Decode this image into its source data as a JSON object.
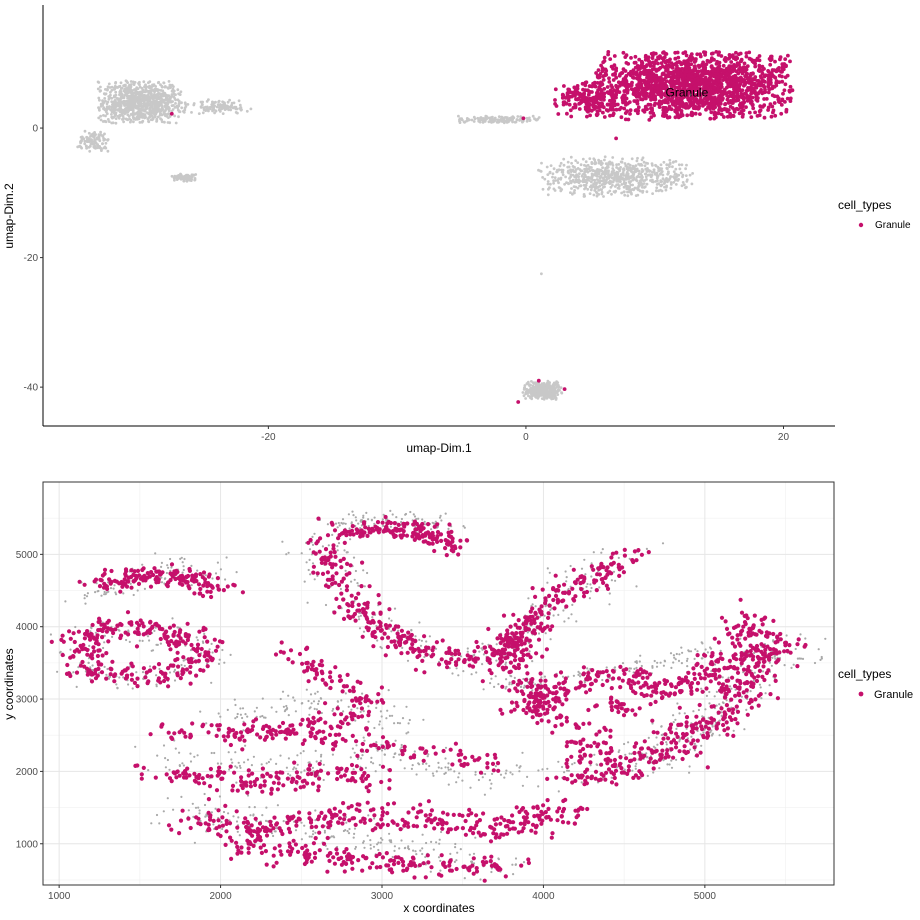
{
  "chart_data": [
    {
      "type": "scatter",
      "xlabel": "umap-Dim.1",
      "ylabel": "umap-Dim.2",
      "xlim": [
        -37.5,
        24
      ],
      "ylim": [
        -46,
        19
      ],
      "x_ticks": [
        -20,
        0,
        20
      ],
      "y_ticks": [
        0,
        -20,
        -40
      ],
      "grid": false,
      "legend": {
        "title": "cell_types",
        "entries": [
          "Granule"
        ],
        "placement": "right"
      },
      "colors": {
        "Granule": "#c5106b",
        "other": "#c8c8c8"
      },
      "annotations": [
        {
          "text": "Granule",
          "x": 12.5,
          "y": 5.5
        }
      ],
      "series": [
        {
          "name": "Granule",
          "clusters": [
            {
              "cx": 13,
              "cy": 6.5,
              "sx": 7,
              "sy": 4.8,
              "n": 1600
            },
            {
              "cx": 5,
              "cy": 4.5,
              "sx": 2.5,
              "sy": 2.5,
              "n": 200
            }
          ],
          "points": [
            [
              -27.5,
              2.2
            ],
            [
              1,
              -39
            ],
            [
              3,
              -40.3
            ],
            [
              -0.6,
              -42.3
            ],
            [
              -0.2,
              1.5
            ],
            [
              7,
              -1.6
            ]
          ]
        },
        {
          "name": "other",
          "clusters": [
            {
              "cx": -30,
              "cy": 4,
              "sx": 3,
              "sy": 3,
              "n": 900
            },
            {
              "cx": -24,
              "cy": 3.3,
              "sx": 2.5,
              "sy": 1,
              "n": 120
            },
            {
              "cx": -33.5,
              "cy": -2,
              "sx": 1.2,
              "sy": 1.5,
              "n": 100
            },
            {
              "cx": -26.5,
              "cy": -7.6,
              "sx": 0.9,
              "sy": 0.6,
              "n": 70
            },
            {
              "cx": 7,
              "cy": -7.5,
              "sx": 5.5,
              "sy": 2.8,
              "n": 700
            },
            {
              "cx": -2,
              "cy": 1.3,
              "sx": 3,
              "sy": 0.5,
              "n": 140
            },
            {
              "cx": 1.3,
              "cy": -40.5,
              "sx": 1.4,
              "sy": 1.3,
              "n": 350
            }
          ],
          "points": [
            [
              1.2,
              -22.5
            ]
          ]
        }
      ]
    },
    {
      "type": "scatter",
      "xlabel": "x coordinates",
      "ylabel": "y coordinates",
      "xlim": [
        900,
        5800
      ],
      "ylim": [
        430,
        6000
      ],
      "x_ticks": [
        1000,
        2000,
        3000,
        4000,
        5000
      ],
      "y_ticks": [
        1000,
        2000,
        3000,
        4000,
        5000
      ],
      "grid": true,
      "legend": {
        "title": "cell_types",
        "entries": [
          "Granule"
        ],
        "placement": "right"
      },
      "colors": {
        "Granule": "#c5106b",
        "other": "#a9a9a9"
      },
      "series": [
        {
          "name": "Granule",
          "path_bands": [
            {
              "path": [
                [
                  1150,
                  3400
                ],
                [
                  1140,
                  3800
                ],
                [
                  1300,
                  4000
                ],
                [
                  1700,
                  3900
                ],
                [
                  1900,
                  3700
                ],
                [
                  1750,
                  3350
                ],
                [
                  1400,
                  3300
                ],
                [
                  1150,
                  3400
                ]
              ],
              "width": 140,
              "n": 280
            },
            {
              "path": [
                [
                  1250,
                  4600
                ],
                [
                  1500,
                  4700
                ],
                [
                  1800,
                  4700
                ],
                [
                  2000,
                  4500
                ]
              ],
              "width": 120,
              "n": 160
            },
            {
              "path": [
                [
                  2400,
                  3700
                ],
                [
                  2700,
                  3300
                ],
                [
                  2900,
                  3000
                ],
                [
                  2800,
                  2700
                ],
                [
                  2500,
                  2600
                ],
                [
                  2000,
                  2400
                ]
              ],
              "width": 110,
              "n": 150
            },
            {
              "path": [
                [
                  2600,
                  5200
                ],
                [
                  2700,
                  4800
                ],
                [
                  2800,
                  4400
                ],
                [
                  2900,
                  4100
                ],
                [
                  3200,
                  3700
                ],
                [
                  3500,
                  3500
                ],
                [
                  3800,
                  3700
                ],
                [
                  4000,
                  4200
                ],
                [
                  4300,
                  4700
                ],
                [
                  4600,
                  5050
                ]
              ],
              "width": 120,
              "n": 420
            },
            {
              "path": [
                [
                  2700,
                  5300
                ],
                [
                  3000,
                  5350
                ],
                [
                  3300,
                  5300
                ],
                [
                  3450,
                  5100
                ]
              ],
              "width": 110,
              "n": 160
            },
            {
              "path": [
                [
                  3900,
                  4100
                ],
                [
                  3800,
                  3500
                ],
                [
                  4000,
                  2900
                ],
                [
                  4300,
                  2500
                ],
                [
                  4200,
                  2200
                ]
              ],
              "width": 140,
              "n": 200
            },
            {
              "path": [
                [
                  4200,
                  1900
                ],
                [
                  4700,
                  2200
                ],
                [
                  5100,
                  2800
                ],
                [
                  5300,
                  3400
                ],
                [
                  5400,
                  3700
                ],
                [
                  5200,
                  4100
                ]
              ],
              "width": 160,
              "n": 400
            },
            {
              "path": [
                [
                  4400,
                  2900
                ],
                [
                  4900,
                  3200
                ],
                [
                  5200,
                  3600
                ]
              ],
              "width": 140,
              "n": 150
            },
            {
              "path": [
                [
                  1600,
                  2000
                ],
                [
                  2300,
                  1850
                ],
                [
                  2800,
                  2000
                ],
                [
                  3000,
                  1850
                ]
              ],
              "width": 150,
              "n": 160
            },
            {
              "path": [
                [
                  1800,
                  1300
                ],
                [
                  2300,
                  1200
                ],
                [
                  2800,
                  1400
                ],
                [
                  3300,
                  1300
                ],
                [
                  3800,
                  1200
                ],
                [
                  4200,
                  1500
                ]
              ],
              "width": 170,
              "n": 320
            },
            {
              "path": [
                [
                  2100,
                  1000
                ],
                [
                  2800,
                  800
                ],
                [
                  3300,
                  700
                ],
                [
                  3800,
                  650
                ]
              ],
              "width": 140,
              "n": 180
            },
            {
              "path": [
                [
                  1600,
                  2500
                ],
                [
                  2200,
                  2600
                ],
                [
                  2800,
                  2400
                ],
                [
                  3300,
                  2300
                ],
                [
                  3700,
                  2100
                ]
              ],
              "width": 120,
              "n": 140
            },
            {
              "path": [
                [
                  3800,
                  2800
                ],
                [
                  4000,
                  3100
                ],
                [
                  4300,
                  3300
                ],
                [
                  4700,
                  3300
                ]
              ],
              "width": 120,
              "n": 120
            }
          ]
        },
        {
          "name": "other",
          "path_bands": [
            {
              "path": [
                [
                  1150,
                  3400
                ],
                [
                  1140,
                  3800
                ],
                [
                  1300,
                  4000
                ],
                [
                  1700,
                  3900
                ],
                [
                  1900,
                  3700
                ],
                [
                  1750,
                  3350
                ],
                [
                  1400,
                  3300
                ],
                [
                  1150,
                  3400
                ]
              ],
              "width": 180,
              "n": 160
            },
            {
              "path": [
                [
                  1200,
                  4400
                ],
                [
                  1600,
                  4800
                ],
                [
                  2000,
                  4700
                ]
              ],
              "width": 170,
              "n": 90
            },
            {
              "path": [
                [
                  2600,
                  5200
                ],
                [
                  2800,
                  4400
                ],
                [
                  3200,
                  3700
                ],
                [
                  3500,
                  3500
                ],
                [
                  3800,
                  3700
                ],
                [
                  4000,
                  4200
                ],
                [
                  4300,
                  4700
                ],
                [
                  4600,
                  5050
                ]
              ],
              "width": 180,
              "n": 260
            },
            {
              "path": [
                [
                  2700,
                  5450
                ],
                [
                  3100,
                  5500
                ],
                [
                  3450,
                  5400
                ]
              ],
              "width": 100,
              "n": 90
            },
            {
              "path": [
                [
                  4200,
                  1900
                ],
                [
                  4700,
                  2200
                ],
                [
                  5100,
                  2800
                ],
                [
                  5400,
                  3600
                ],
                [
                  5600,
                  3700
                ]
              ],
              "width": 200,
              "n": 260
            },
            {
              "path": [
                [
                  3700,
                  3200
                ],
                [
                  4200,
                  3300
                ],
                [
                  4700,
                  3500
                ],
                [
                  5100,
                  3700
                ]
              ],
              "width": 110,
              "n": 120
            },
            {
              "path": [
                [
                  1700,
                  1500
                ],
                [
                  2500,
                  1200
                ],
                [
                  3300,
                  900
                ],
                [
                  3800,
                  650
                ]
              ],
              "width": 220,
              "n": 220
            },
            {
              "path": [
                [
                  1600,
                  2200
                ],
                [
                  2400,
                  2000
                ],
                [
                  3000,
                  2300
                ],
                [
                  3600,
                  1900
                ],
                [
                  4100,
                  2000
                ]
              ],
              "width": 200,
              "n": 200
            },
            {
              "path": [
                [
                  2000,
                  2700
                ],
                [
                  2600,
                  3000
                ],
                [
                  3100,
                  2700
                ]
              ],
              "width": 170,
              "n": 110
            }
          ]
        }
      ]
    }
  ]
}
